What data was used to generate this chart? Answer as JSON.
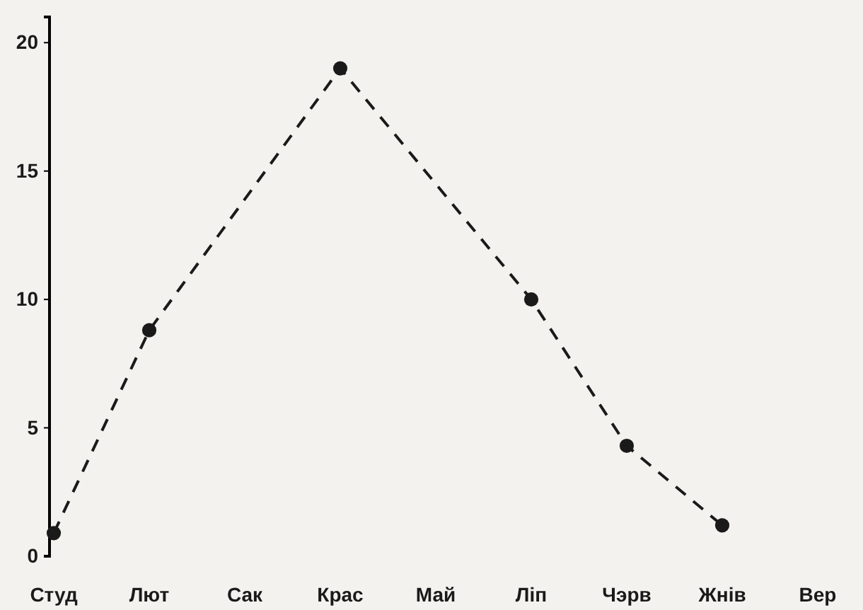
{
  "chart_data": {
    "type": "line",
    "categories": [
      "Студ",
      "Лют",
      "Сак",
      "Крас",
      "Май",
      "Ліп",
      "Чэрв",
      "Жнів",
      "Вер"
    ],
    "series": [
      {
        "color": "#1a1a1a",
        "values": [
          0.9,
          8.8,
          null,
          19,
          null,
          10,
          4.3,
          1.2,
          null
        ]
      }
    ],
    "ylim": [
      0,
      21
    ],
    "yticks": [
      0,
      5,
      10,
      15,
      20
    ],
    "marker": "circle",
    "line_style": "dashed",
    "grid": false
  }
}
